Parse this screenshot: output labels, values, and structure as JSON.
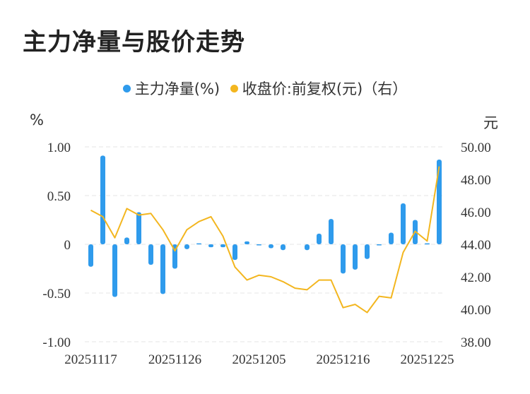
{
  "title": "主力净量与股价走势",
  "legend": {
    "net_label": "主力净量(%)",
    "price_label": "收盘价:前复权(元)（右）"
  },
  "colors": {
    "bar": "#2f9bec",
    "line": "#f3b61f",
    "grid": "#e6e6e6"
  },
  "chart_data": {
    "type": "bar+line",
    "title": "主力净量与股价走势",
    "left_axis": {
      "unit": "%",
      "ylim": [
        -1.0,
        1.0
      ],
      "ticks": [
        1.0,
        0.5,
        0,
        -0.5,
        -1.0
      ],
      "tick_labels": [
        "1.00",
        "0.50",
        "0",
        "-0.50",
        "-1.00"
      ]
    },
    "right_axis": {
      "unit": "元",
      "ylim": [
        38.0,
        50.0
      ],
      "ticks": [
        50.0,
        48.0,
        46.0,
        44.0,
        42.0,
        40.0,
        38.0
      ],
      "tick_labels": [
        "50.00",
        "48.00",
        "46.00",
        "44.00",
        "42.00",
        "40.00",
        "38.00"
      ]
    },
    "x_tick_labels": [
      "20251117",
      "20251126",
      "20251205",
      "20251216",
      "20251225"
    ],
    "x_tick_index": [
      0,
      7,
      14,
      21,
      28
    ],
    "grid": true,
    "legend_position": "top-center",
    "series": [
      {
        "name": "主力净量(%)",
        "axis": "left",
        "values": [
          -0.23,
          0.91,
          -0.54,
          0.07,
          0.33,
          -0.21,
          -0.51,
          -0.25,
          -0.05,
          0.01,
          -0.03,
          -0.03,
          -0.16,
          0.03,
          -0.01,
          -0.04,
          -0.06,
          0.0,
          -0.06,
          0.11,
          0.26,
          -0.3,
          -0.26,
          -0.15,
          -0.01,
          0.12,
          0.42,
          0.25,
          0.01,
          0.87
        ]
      },
      {
        "name": "收盘价:前复权(元)（右）",
        "axis": "right",
        "values": [
          46.1,
          45.7,
          44.4,
          46.2,
          45.8,
          45.9,
          44.9,
          43.6,
          44.9,
          45.4,
          45.7,
          44.5,
          42.6,
          41.8,
          42.1,
          42.0,
          41.7,
          41.3,
          41.2,
          41.8,
          41.8,
          40.1,
          40.3,
          39.8,
          40.8,
          40.7,
          43.5,
          44.8,
          44.2,
          48.8
        ]
      }
    ]
  }
}
